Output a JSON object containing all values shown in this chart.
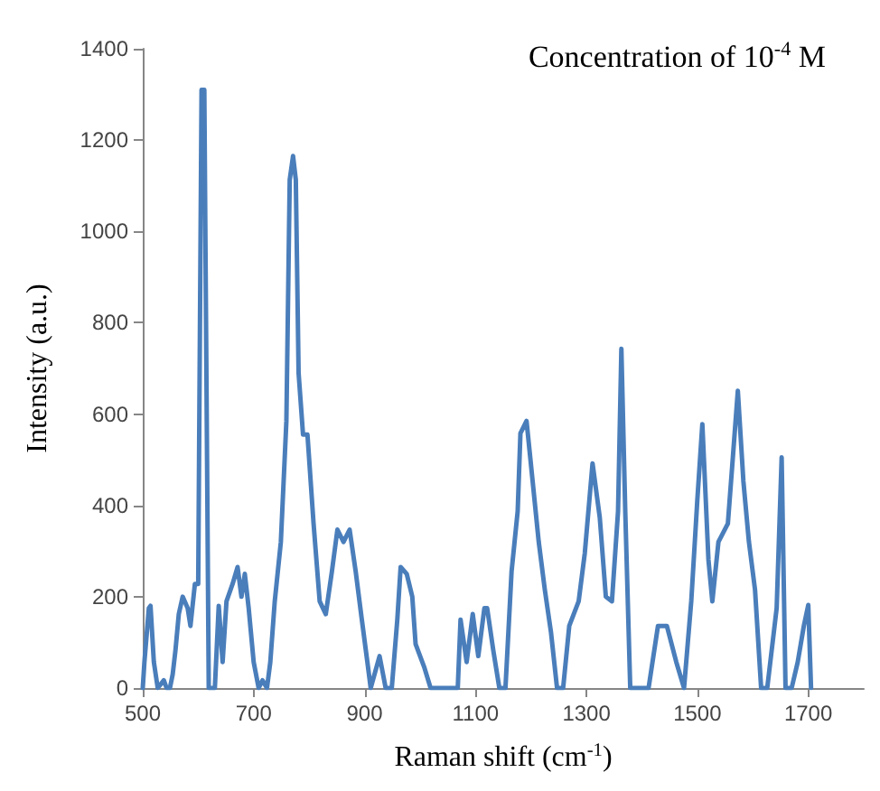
{
  "chart_data": {
    "type": "line",
    "xlabel": "Raman shift (cm$^{-1}$)",
    "ylabel": "Intensity (a.u.)",
    "annotations": [
      "Concentration of 10$^{-4}$ M"
    ],
    "xlim": [
      500,
      1800
    ],
    "xticks": [
      500,
      700,
      900,
      1100,
      1300,
      1500,
      1700
    ],
    "ylim": [
      0,
      1400
    ],
    "yticks": [
      0,
      200,
      400,
      600,
      800,
      1000,
      1200,
      1400
    ],
    "grid": false,
    "marker": "none",
    "line_style": "solid",
    "series": [
      {
        "color": "#4a7ebb",
        "x": [
          500,
          503,
          511,
          514,
          520,
          527,
          538,
          543,
          549,
          554,
          559,
          565,
          572,
          581,
          586,
          594,
          600,
          606,
          611,
          619,
          624,
          630,
          637,
          644,
          651,
          662,
          671,
          678,
          684,
          691,
          700,
          709,
          716,
          724,
          730,
          738,
          749,
          759,
          765,
          771,
          776,
          781,
          789,
          797,
          808,
          819,
          830,
          841,
          851,
          862,
          873,
          884,
          895,
          905,
          911,
          927,
          938,
          949,
          959,
          965,
          976,
          986,
          992,
          1008,
          1019,
          1068,
          1073,
          1084,
          1095,
          1105,
          1116,
          1121,
          1132,
          1143,
          1154,
          1165,
          1176,
          1181,
          1192,
          1203,
          1214,
          1225,
          1236,
          1247,
          1258,
          1269,
          1286,
          1297,
          1311,
          1324,
          1335,
          1346,
          1357,
          1363,
          1370,
          1379,
          1390,
          1412,
          1429,
          1445,
          1462,
          1476,
          1489,
          1500,
          1509,
          1520,
          1527,
          1538,
          1555,
          1564,
          1573,
          1583,
          1593,
          1604,
          1615,
          1626,
          1643,
          1652,
          1659,
          1670,
          1681,
          1692,
          1700,
          1705
        ],
        "values": [
          0,
          57,
          175,
          180,
          57,
          0,
          17,
          0,
          0,
          30,
          83,
          162,
          200,
          175,
          136,
          228,
          228,
          1310,
          1310,
          0,
          0,
          0,
          180,
          57,
          190,
          228,
          265,
          200,
          250,
          175,
          57,
          0,
          17,
          0,
          57,
          190,
          320,
          585,
          1113,
          1165,
          1113,
          690,
          555,
          555,
          360,
          190,
          162,
          255,
          347,
          320,
          347,
          255,
          150,
          57,
          0,
          70,
          0,
          0,
          150,
          265,
          250,
          200,
          96,
          44,
          0,
          0,
          150,
          57,
          162,
          70,
          175,
          175,
          83,
          0,
          0,
          255,
          387,
          558,
          585,
          453,
          320,
          215,
          123,
          0,
          0,
          136,
          190,
          295,
          492,
          374,
          200,
          190,
          387,
          743,
          387,
          0,
          0,
          0,
          136,
          136,
          57,
          0,
          190,
          413,
          578,
          281,
          190,
          320,
          360,
          505,
          651,
          453,
          320,
          215,
          0,
          0,
          175,
          505,
          0,
          0,
          57,
          136,
          182,
          0
        ]
      }
    ]
  }
}
